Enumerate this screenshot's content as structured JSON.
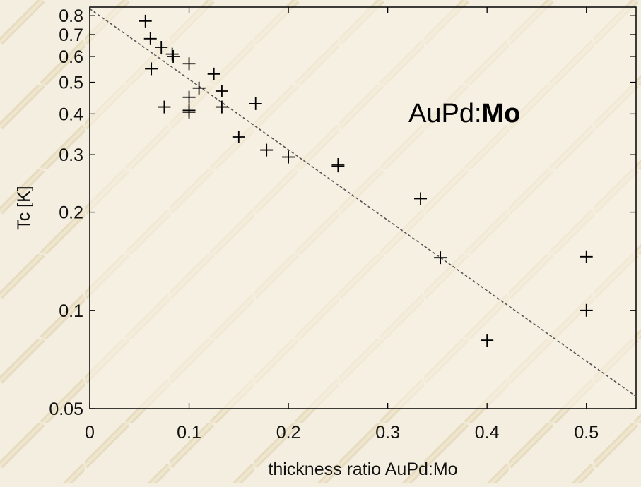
{
  "chart_data": {
    "type": "scatter",
    "xlabel": "thickness ratio AuPd:Mo",
    "ylabel": "Tc [K]",
    "xlim": [
      0,
      0.55
    ],
    "ylim": [
      0.05,
      0.85
    ],
    "yscale": "log",
    "x_ticks": [
      0,
      0.1,
      0.2,
      0.3,
      0.4,
      0.5
    ],
    "x_tick_labels": [
      "0",
      "0.1",
      "0.2",
      "0.3",
      "0.4",
      "0.5"
    ],
    "y_ticks": [
      0.05,
      0.1,
      0.2,
      0.3,
      0.4,
      0.5,
      0.6,
      0.7,
      0.8
    ],
    "y_tick_labels": [
      "0.05",
      "0.1",
      "0.2",
      "0.3",
      "0.4",
      "0.5",
      "0.6",
      "0.7",
      "0.8"
    ],
    "grid": false,
    "annotation": {
      "prefix": "AuPd:",
      "bold": "Mo"
    },
    "series": [
      {
        "marker": "plus",
        "color": "#000000",
        "points": [
          {
            "x": 0.056,
            "y": 0.77
          },
          {
            "x": 0.061,
            "y": 0.68
          },
          {
            "x": 0.072,
            "y": 0.64
          },
          {
            "x": 0.083,
            "y": 0.61
          },
          {
            "x": 0.084,
            "y": 0.6
          },
          {
            "x": 0.1,
            "y": 0.57
          },
          {
            "x": 0.062,
            "y": 0.55
          },
          {
            "x": 0.125,
            "y": 0.53
          },
          {
            "x": 0.11,
            "y": 0.48
          },
          {
            "x": 0.133,
            "y": 0.47
          },
          {
            "x": 0.1,
            "y": 0.45
          },
          {
            "x": 0.075,
            "y": 0.42
          },
          {
            "x": 0.133,
            "y": 0.42
          },
          {
            "x": 0.167,
            "y": 0.43
          },
          {
            "x": 0.1,
            "y": 0.41
          },
          {
            "x": 0.1,
            "y": 0.405
          },
          {
            "x": 0.15,
            "y": 0.34
          },
          {
            "x": 0.178,
            "y": 0.31
          },
          {
            "x": 0.2,
            "y": 0.295
          },
          {
            "x": 0.25,
            "y": 0.28
          },
          {
            "x": 0.25,
            "y": 0.277
          },
          {
            "x": 0.333,
            "y": 0.22
          },
          {
            "x": 0.353,
            "y": 0.145
          },
          {
            "x": 0.5,
            "y": 0.146
          },
          {
            "x": 0.5,
            "y": 0.1
          },
          {
            "x": 0.4,
            "y": 0.081
          }
        ]
      }
    ],
    "fit_line": {
      "style": "dashed",
      "color": "#555555",
      "points": [
        {
          "x": 0,
          "y": 0.84
        },
        {
          "x": 0.55,
          "y": 0.0545
        }
      ]
    }
  }
}
